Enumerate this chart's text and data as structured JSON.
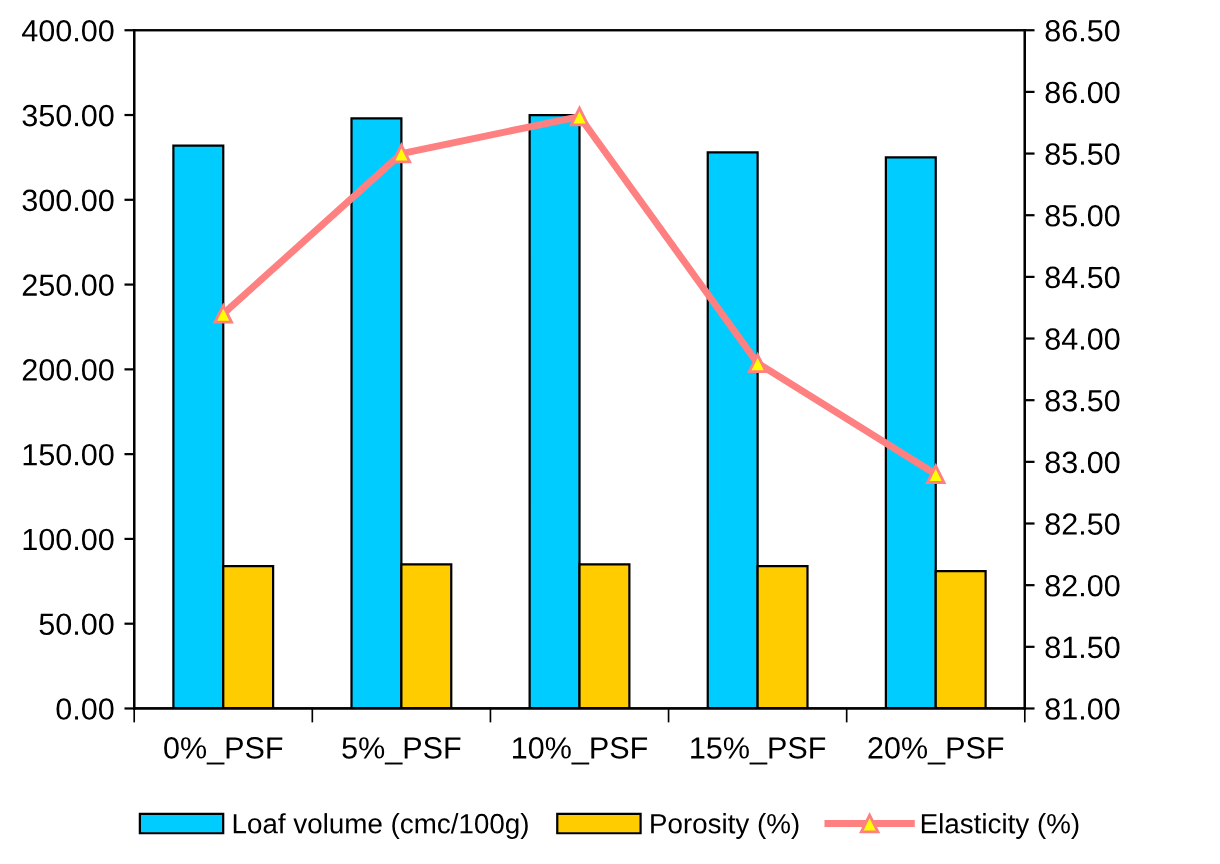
{
  "chart_data": {
    "type": "bar",
    "categories": [
      "0%_PSF",
      "5%_PSF",
      "10%_PSF",
      "15%_PSF",
      "20%_PSF"
    ],
    "series": [
      {
        "name": "Loaf volume (cmc/100g)",
        "color": "#00ccff",
        "values": [
          332,
          348,
          350,
          328,
          325
        ]
      },
      {
        "name": "Porosity (%)",
        "color": "#ffcc00",
        "values": [
          84,
          85,
          85,
          84,
          81
        ]
      },
      {
        "name": "Elasticity (%)",
        "type": "line",
        "axis": "y2",
        "color": "#ff8080",
        "marker": "triangle",
        "values": [
          84.2,
          85.5,
          85.8,
          83.8,
          82.9
        ]
      }
    ],
    "ylim": [
      0,
      400
    ],
    "yticks": [
      {
        "value": 0,
        "label": "0.00"
      },
      {
        "value": 50,
        "label": "50.00"
      },
      {
        "value": 100,
        "label": "100.00"
      },
      {
        "value": 150,
        "label": "150.00"
      },
      {
        "value": 200,
        "label": "200.00"
      },
      {
        "value": 250,
        "label": "250.00"
      },
      {
        "value": 300,
        "label": "300.00"
      },
      {
        "value": 350,
        "label": "350.00"
      },
      {
        "value": 400,
        "label": "400.00"
      }
    ],
    "y2lim": [
      81,
      86.5
    ],
    "y2ticks": [
      {
        "value": 81,
        "label": "81.00"
      },
      {
        "value": 81.5,
        "label": "81.50"
      },
      {
        "value": 82,
        "label": "82.00"
      },
      {
        "value": 82.5,
        "label": "82.50"
      },
      {
        "value": 83,
        "label": "83.00"
      },
      {
        "value": 83.5,
        "label": "83.50"
      },
      {
        "value": 84,
        "label": "84.00"
      },
      {
        "value": 84.5,
        "label": "84.50"
      },
      {
        "value": 85,
        "label": "85.00"
      },
      {
        "value": 85.5,
        "label": "85.50"
      },
      {
        "value": 86,
        "label": "86.00"
      },
      {
        "value": 86.5,
        "label": "86.50"
      }
    ],
    "grid": false,
    "legend": "bottom"
  }
}
